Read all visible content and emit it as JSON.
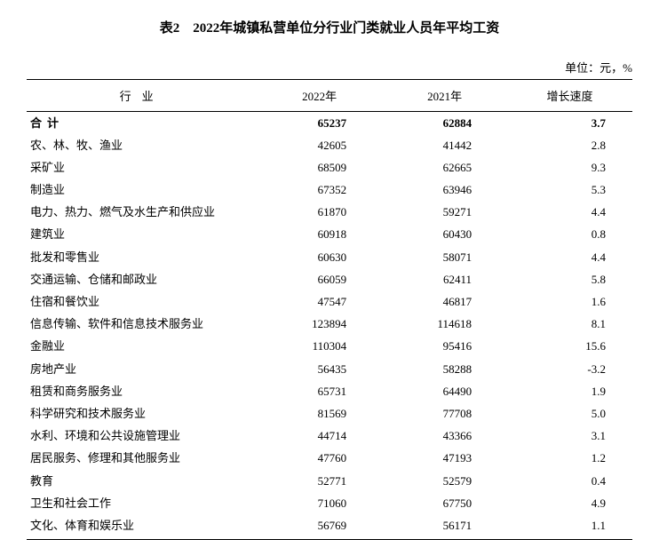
{
  "title": "表2　2022年城镇私营单位分行业门类就业人员年平均工资",
  "unit_label": "单位：元，%",
  "headers": {
    "industry": "行业",
    "y2022": "2022年",
    "y2021": "2021年",
    "growth": "增长速度"
  },
  "total_row": {
    "label": "合计",
    "y2022": "65237",
    "y2021": "62884",
    "growth": "3.7"
  },
  "rows": [
    {
      "label": "农、林、牧、渔业",
      "y2022": "42605",
      "y2021": "41442",
      "growth": "2.8"
    },
    {
      "label": "采矿业",
      "y2022": "68509",
      "y2021": "62665",
      "growth": "9.3"
    },
    {
      "label": "制造业",
      "y2022": "67352",
      "y2021": "63946",
      "growth": "5.3"
    },
    {
      "label": "电力、热力、燃气及水生产和供应业",
      "y2022": "61870",
      "y2021": "59271",
      "growth": "4.4"
    },
    {
      "label": "建筑业",
      "y2022": "60918",
      "y2021": "60430",
      "growth": "0.8"
    },
    {
      "label": "批发和零售业",
      "y2022": "60630",
      "y2021": "58071",
      "growth": "4.4"
    },
    {
      "label": "交通运输、仓储和邮政业",
      "y2022": "66059",
      "y2021": "62411",
      "growth": "5.8"
    },
    {
      "label": "住宿和餐饮业",
      "y2022": "47547",
      "y2021": "46817",
      "growth": "1.6"
    },
    {
      "label": "信息传输、软件和信息技术服务业",
      "y2022": "123894",
      "y2021": "114618",
      "growth": "8.1"
    },
    {
      "label": "金融业",
      "y2022": "110304",
      "y2021": "95416",
      "growth": "15.6"
    },
    {
      "label": "房地产业",
      "y2022": "56435",
      "y2021": "58288",
      "growth": "-3.2"
    },
    {
      "label": "租赁和商务服务业",
      "y2022": "65731",
      "y2021": "64490",
      "growth": "1.9"
    },
    {
      "label": "科学研究和技术服务业",
      "y2022": "81569",
      "y2021": "77708",
      "growth": "5.0"
    },
    {
      "label": "水利、环境和公共设施管理业",
      "y2022": "44714",
      "y2021": "43366",
      "growth": "3.1"
    },
    {
      "label": "居民服务、修理和其他服务业",
      "y2022": "47760",
      "y2021": "47193",
      "growth": "1.2"
    },
    {
      "label": "教育",
      "y2022": "52771",
      "y2021": "52579",
      "growth": "0.4"
    },
    {
      "label": "卫生和社会工作",
      "y2022": "71060",
      "y2021": "67750",
      "growth": "4.9"
    },
    {
      "label": "文化、体育和娱乐业",
      "y2022": "56769",
      "y2021": "56171",
      "growth": "1.1"
    }
  ]
}
